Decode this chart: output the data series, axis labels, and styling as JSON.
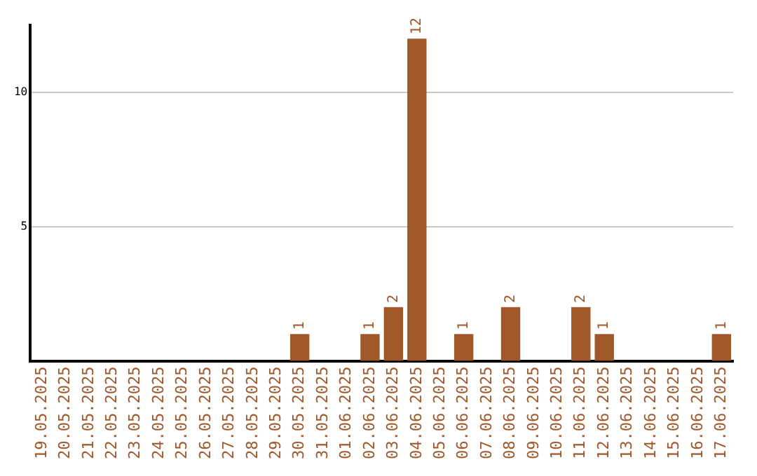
{
  "chart_data": {
    "type": "bar",
    "categories": [
      "19.05.2025",
      "20.05.2025",
      "21.05.2025",
      "22.05.2025",
      "23.05.2025",
      "24.05.2025",
      "25.05.2025",
      "26.05.2025",
      "27.05.2025",
      "28.05.2025",
      "29.05.2025",
      "30.05.2025",
      "31.05.2025",
      "01.06.2025",
      "02.06.2025",
      "03.06.2025",
      "04.06.2025",
      "05.06.2025",
      "06.06.2025",
      "07.06.2025",
      "08.06.2025",
      "09.06.2025",
      "10.06.2025",
      "11.06.2025",
      "12.06.2025",
      "13.06.2025",
      "14.06.2025",
      "15.06.2025",
      "16.06.2025",
      "17.06.2025"
    ],
    "values": [
      0,
      0,
      0,
      0,
      0,
      0,
      0,
      0,
      0,
      0,
      0,
      1,
      0,
      0,
      1,
      2,
      12,
      0,
      1,
      0,
      2,
      0,
      0,
      2,
      1,
      0,
      0,
      0,
      0,
      1
    ],
    "value_labels": [
      null,
      null,
      null,
      null,
      null,
      null,
      null,
      null,
      null,
      null,
      null,
      "1",
      null,
      null,
      "1",
      "2",
      "12",
      null,
      "1",
      null,
      "2",
      null,
      null,
      "2",
      "1",
      null,
      null,
      null,
      null,
      "1"
    ],
    "color": "#a0572a",
    "ylim": [
      0,
      12.5
    ],
    "yticks": [
      5,
      10
    ],
    "grid": "y",
    "legend": false
  }
}
